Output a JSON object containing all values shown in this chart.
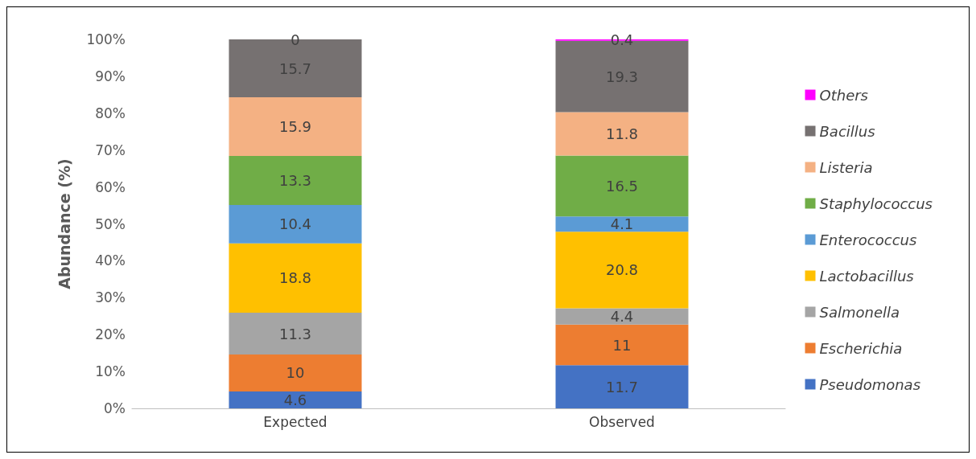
{
  "chart_data": {
    "type": "bar",
    "stacked": true,
    "categories": [
      "Expected",
      "Observed"
    ],
    "ylabel": "Abundance (%)",
    "ylim": [
      0,
      100
    ],
    "yticks": [
      {
        "value": 0,
        "label": "0%"
      },
      {
        "value": 10,
        "label": "10%"
      },
      {
        "value": 20,
        "label": "20%"
      },
      {
        "value": 30,
        "label": "30%"
      },
      {
        "value": 40,
        "label": "40%"
      },
      {
        "value": 50,
        "label": "50%"
      },
      {
        "value": 60,
        "label": "60%"
      },
      {
        "value": 70,
        "label": "70%"
      },
      {
        "value": 80,
        "label": "80%"
      },
      {
        "value": 90,
        "label": "90%"
      },
      {
        "value": 100,
        "label": "100%"
      }
    ],
    "series": [
      {
        "name": "Pseudomonas",
        "color": "#4472c4",
        "values": [
          4.6,
          11.7
        ]
      },
      {
        "name": "Escherichia",
        "color": "#ed7d31",
        "values": [
          10,
          11
        ]
      },
      {
        "name": "Salmonella",
        "color": "#a5a5a5",
        "values": [
          11.3,
          4.4
        ]
      },
      {
        "name": "Lactobacillus",
        "color": "#ffc000",
        "values": [
          18.8,
          20.8
        ]
      },
      {
        "name": "Enterococcus",
        "color": "#5b9bd5",
        "values": [
          10.4,
          4.1
        ]
      },
      {
        "name": "Staphylococcus",
        "color": "#70ad47",
        "values": [
          13.3,
          16.5
        ]
      },
      {
        "name": "Listeria",
        "color": "#f4b183",
        "values": [
          15.9,
          11.8
        ]
      },
      {
        "name": "Bacillus",
        "color": "#767171",
        "values": [
          15.7,
          19.3
        ]
      },
      {
        "name": "Others",
        "color": "#ff00ff",
        "values": [
          0,
          0.4
        ]
      }
    ],
    "data_labels": true,
    "grid": false,
    "legend": "right"
  }
}
